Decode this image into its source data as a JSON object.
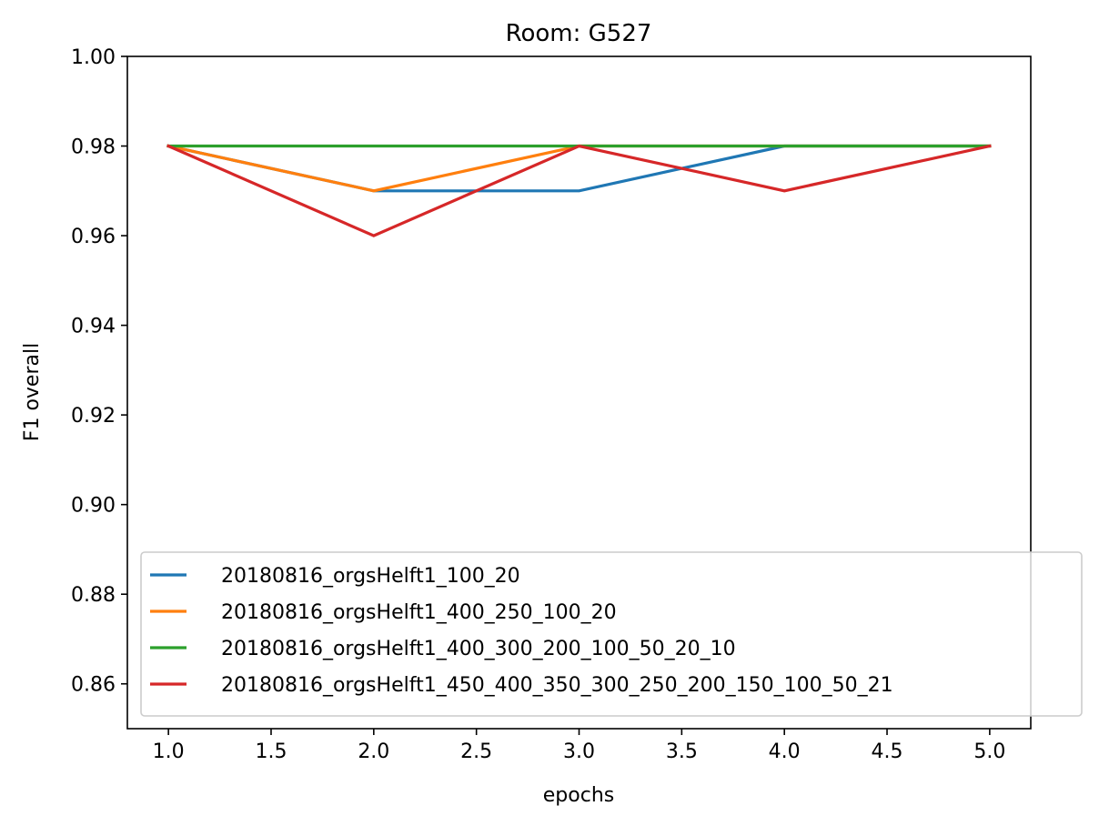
{
  "chart_data": {
    "type": "line",
    "title": "Room: G527",
    "xlabel": "epochs",
    "ylabel": "F1 overall",
    "xlim": [
      0.8,
      5.2
    ],
    "ylim": [
      0.85,
      1.0
    ],
    "xticks": [
      1.0,
      1.5,
      2.0,
      2.5,
      3.0,
      3.5,
      4.0,
      4.5,
      5.0
    ],
    "xtick_labels": [
      "1.0",
      "1.5",
      "2.0",
      "2.5",
      "3.0",
      "3.5",
      "4.0",
      "4.5",
      "5.0"
    ],
    "yticks": [
      0.86,
      0.88,
      0.9,
      0.92,
      0.94,
      0.96,
      0.98,
      1.0
    ],
    "ytick_labels": [
      "0.86",
      "0.88",
      "0.90",
      "0.92",
      "0.94",
      "0.96",
      "0.98",
      "1.00"
    ],
    "grid": false,
    "legend_position": "lower-right",
    "x": [
      1,
      2,
      3,
      4,
      5
    ],
    "series": [
      {
        "name": "20180816_orgsHelft1_100_20",
        "color": "#1f77b4",
        "values": [
          0.98,
          0.97,
          0.97,
          0.98,
          0.98
        ]
      },
      {
        "name": "20180816_orgsHelft1_400_250_100_20",
        "color": "#ff7f0e",
        "values": [
          0.98,
          0.97,
          0.98,
          0.98,
          0.98
        ]
      },
      {
        "name": "20180816_orgsHelft1_400_300_200_100_50_20_10",
        "color": "#2ca02c",
        "values": [
          0.98,
          0.98,
          0.98,
          0.98,
          0.98
        ]
      },
      {
        "name": "20180816_orgsHelft1_450_400_350_300_250_200_150_100_50_21",
        "color": "#d62728",
        "values": [
          0.98,
          0.96,
          0.98,
          0.97,
          0.98
        ]
      }
    ]
  }
}
